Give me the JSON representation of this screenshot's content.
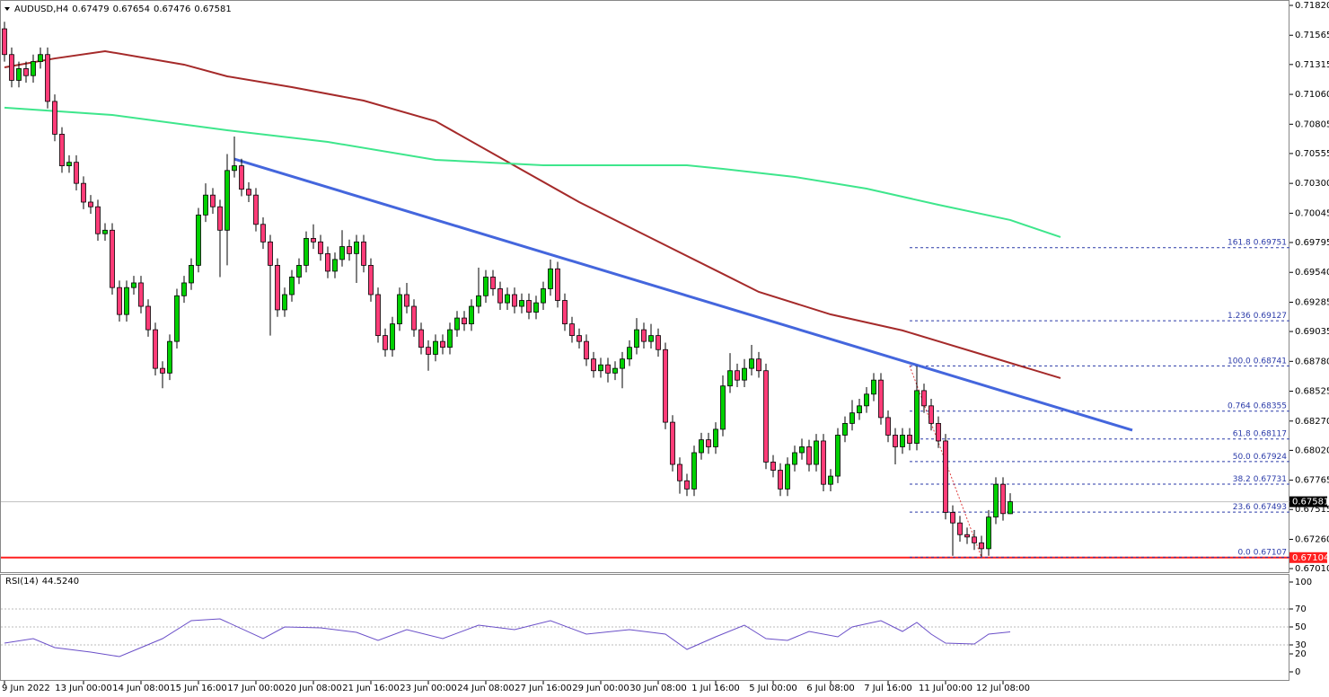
{
  "chart_data": {
    "type": "candlestick",
    "symbol": "AUDUSD,H4",
    "ylim": [
      0.66972,
      0.71866
    ],
    "yticks": [
      {
        "value": 0.7182,
        "label": "0.71820"
      },
      {
        "value": 0.71565,
        "label": "0.71565"
      },
      {
        "value": 0.71315,
        "label": "0.71315"
      },
      {
        "value": 0.7106,
        "label": "0.71060"
      },
      {
        "value": 0.70805,
        "label": "0.70805"
      },
      {
        "value": 0.70555,
        "label": "0.70555"
      },
      {
        "value": 0.703,
        "label": "0.70300"
      },
      {
        "value": 0.70045,
        "label": "0.70045"
      },
      {
        "value": 0.69795,
        "label": "0.69795"
      },
      {
        "value": 0.6954,
        "label": "0.69540"
      },
      {
        "value": 0.69285,
        "label": "0.69285"
      },
      {
        "value": 0.69035,
        "label": "0.69035"
      },
      {
        "value": 0.6878,
        "label": "0.68780"
      },
      {
        "value": 0.68525,
        "label": "0.68525"
      },
      {
        "value": 0.6827,
        "label": "0.68270"
      },
      {
        "value": 0.6802,
        "label": "0.68020"
      },
      {
        "value": 0.67765,
        "label": "0.67765"
      },
      {
        "value": 0.67515,
        "label": "0.67515"
      },
      {
        "value": 0.6726,
        "label": "0.67260"
      },
      {
        "value": 0.6701,
        "label": "0.67010"
      }
    ],
    "xticks": [
      {
        "value": 0,
        "label": "9 Jun 2022"
      },
      {
        "value": 11,
        "label": "13 Jun 00:00"
      },
      {
        "value": 19,
        "label": "14 Jun 08:00"
      },
      {
        "value": 27,
        "label": "15 Jun 16:00"
      },
      {
        "value": 35,
        "label": "17 Jun 00:00"
      },
      {
        "value": 43,
        "label": "20 Jun 08:00"
      },
      {
        "value": 51,
        "label": "21 Jun 16:00"
      },
      {
        "value": 59,
        "label": "23 Jun 00:00"
      },
      {
        "value": 67,
        "label": "24 Jun 08:00"
      },
      {
        "value": 75,
        "label": "27 Jun 16:00"
      },
      {
        "value": 83,
        "label": "29 Jun 00:00"
      },
      {
        "value": 91,
        "label": "30 Jun 08:00"
      },
      {
        "value": 99,
        "label": "1 Jul 16:00"
      },
      {
        "value": 107,
        "label": "5 Jul 00:00"
      },
      {
        "value": 115,
        "label": "6 Jul 08:00"
      },
      {
        "value": 123,
        "label": "7 Jul 16:00"
      },
      {
        "value": 131,
        "label": "11 Jul 00:00"
      },
      {
        "value": 139,
        "label": "12 Jul 08:00"
      }
    ],
    "up_color": "#00d000",
    "down_color": "#ff3c78",
    "candles": [
      [
        0.7162,
        0.7168,
        0.7134,
        0.714
      ],
      [
        0.714,
        0.7146,
        0.7112,
        0.7118
      ],
      [
        0.7118,
        0.7134,
        0.7112,
        0.7128
      ],
      [
        0.7128,
        0.7134,
        0.7116,
        0.7122
      ],
      [
        0.7122,
        0.714,
        0.7116,
        0.7134
      ],
      [
        0.7134,
        0.7146,
        0.7128,
        0.714
      ],
      [
        0.714,
        0.7146,
        0.7094,
        0.71
      ],
      [
        0.71,
        0.7106,
        0.7066,
        0.7072
      ],
      [
        0.7072,
        0.7078,
        0.7039,
        0.7045
      ],
      [
        0.7045,
        0.7054,
        0.7039,
        0.7048
      ],
      [
        0.7048,
        0.7054,
        0.7024,
        0.703
      ],
      [
        0.703,
        0.7036,
        0.7008,
        0.7014
      ],
      [
        0.7014,
        0.702,
        0.7004,
        0.701
      ],
      [
        0.701,
        0.7016,
        0.6981,
        0.6987
      ],
      [
        0.6987,
        0.6996,
        0.6981,
        0.699
      ],
      [
        0.699,
        0.6996,
        0.6935,
        0.6941
      ],
      [
        0.6941,
        0.6947,
        0.6912,
        0.6918
      ],
      [
        0.6918,
        0.6947,
        0.6912,
        0.6941
      ],
      [
        0.6941,
        0.6951,
        0.6935,
        0.6945
      ],
      [
        0.6945,
        0.6951,
        0.6919,
        0.6925
      ],
      [
        0.6925,
        0.6931,
        0.6899,
        0.6905
      ],
      [
        0.6905,
        0.6911,
        0.6866,
        0.6872
      ],
      [
        0.6872,
        0.6878,
        0.6855,
        0.6868
      ],
      [
        0.6868,
        0.6901,
        0.6862,
        0.6895
      ],
      [
        0.6895,
        0.694,
        0.6889,
        0.6934
      ],
      [
        0.6934,
        0.6951,
        0.6928,
        0.6945
      ],
      [
        0.6945,
        0.6966,
        0.6939,
        0.696
      ],
      [
        0.696,
        0.7009,
        0.6954,
        0.7003
      ],
      [
        0.7003,
        0.703,
        0.6997,
        0.702
      ],
      [
        0.702,
        0.7026,
        0.7004,
        0.701
      ],
      [
        0.701,
        0.7016,
        0.695,
        0.699
      ],
      [
        0.699,
        0.7055,
        0.696,
        0.7041
      ],
      [
        0.7041,
        0.707,
        0.7035,
        0.7045
      ],
      [
        0.7045,
        0.7051,
        0.7019,
        0.7025
      ],
      [
        0.7025,
        0.7031,
        0.7014,
        0.702
      ],
      [
        0.702,
        0.7026,
        0.6989,
        0.6995
      ],
      [
        0.6995,
        0.7001,
        0.6974,
        0.698
      ],
      [
        0.698,
        0.6986,
        0.69,
        0.696
      ],
      [
        0.696,
        0.6966,
        0.6916,
        0.6922
      ],
      [
        0.6922,
        0.6941,
        0.6916,
        0.6935
      ],
      [
        0.6935,
        0.6956,
        0.6929,
        0.695
      ],
      [
        0.695,
        0.6966,
        0.6944,
        0.696
      ],
      [
        0.696,
        0.6989,
        0.6954,
        0.6983
      ],
      [
        0.6983,
        0.6995,
        0.6974,
        0.698
      ],
      [
        0.698,
        0.6986,
        0.6964,
        0.697
      ],
      [
        0.697,
        0.6976,
        0.6949,
        0.6955
      ],
      [
        0.6955,
        0.6971,
        0.6949,
        0.6965
      ],
      [
        0.6965,
        0.699,
        0.6959,
        0.6976
      ],
      [
        0.6976,
        0.6982,
        0.6964,
        0.697
      ],
      [
        0.697,
        0.6986,
        0.6945,
        0.698
      ],
      [
        0.698,
        0.6986,
        0.6954,
        0.696
      ],
      [
        0.696,
        0.6966,
        0.6929,
        0.6935
      ],
      [
        0.6935,
        0.6941,
        0.6894,
        0.69
      ],
      [
        0.69,
        0.6906,
        0.6882,
        0.6888
      ],
      [
        0.6888,
        0.6916,
        0.6882,
        0.691
      ],
      [
        0.691,
        0.6941,
        0.6904,
        0.6935
      ],
      [
        0.6935,
        0.6945,
        0.6919,
        0.6925
      ],
      [
        0.6925,
        0.6931,
        0.6899,
        0.6905
      ],
      [
        0.6905,
        0.6911,
        0.6884,
        0.689
      ],
      [
        0.689,
        0.6896,
        0.687,
        0.6884
      ],
      [
        0.6884,
        0.6901,
        0.6878,
        0.6895
      ],
      [
        0.6895,
        0.6901,
        0.6884,
        0.689
      ],
      [
        0.689,
        0.6911,
        0.6884,
        0.6905
      ],
      [
        0.6905,
        0.6921,
        0.6899,
        0.6915
      ],
      [
        0.6915,
        0.6921,
        0.6904,
        0.691
      ],
      [
        0.691,
        0.6931,
        0.6904,
        0.6925
      ],
      [
        0.6925,
        0.6958,
        0.6919,
        0.6934
      ],
      [
        0.6934,
        0.6956,
        0.6928,
        0.695
      ],
      [
        0.695,
        0.6956,
        0.6934,
        0.694
      ],
      [
        0.694,
        0.6946,
        0.6922,
        0.6928
      ],
      [
        0.6928,
        0.6941,
        0.6922,
        0.6935
      ],
      [
        0.6935,
        0.6941,
        0.6919,
        0.6925
      ],
      [
        0.6925,
        0.6936,
        0.6919,
        0.693
      ],
      [
        0.693,
        0.6936,
        0.6914,
        0.692
      ],
      [
        0.692,
        0.6934,
        0.6914,
        0.6928
      ],
      [
        0.6928,
        0.6946,
        0.6922,
        0.694
      ],
      [
        0.694,
        0.6965,
        0.6934,
        0.6957
      ],
      [
        0.6957,
        0.6963,
        0.6924,
        0.693
      ],
      [
        0.693,
        0.6936,
        0.6904,
        0.691
      ],
      [
        0.691,
        0.6916,
        0.6894,
        0.69
      ],
      [
        0.69,
        0.6906,
        0.6889,
        0.6895
      ],
      [
        0.6895,
        0.6901,
        0.6874,
        0.688
      ],
      [
        0.688,
        0.6886,
        0.6864,
        0.687
      ],
      [
        0.687,
        0.6881,
        0.6864,
        0.6875
      ],
      [
        0.6875,
        0.6881,
        0.686,
        0.6868
      ],
      [
        0.6868,
        0.6878,
        0.6862,
        0.6872
      ],
      [
        0.6872,
        0.6886,
        0.6855,
        0.688
      ],
      [
        0.688,
        0.6896,
        0.6874,
        0.689
      ],
      [
        0.689,
        0.6915,
        0.6884,
        0.6905
      ],
      [
        0.6905,
        0.6911,
        0.6889,
        0.6895
      ],
      [
        0.6895,
        0.691,
        0.6889,
        0.69
      ],
      [
        0.69,
        0.6906,
        0.6882,
        0.6888
      ],
      [
        0.6888,
        0.6894,
        0.682,
        0.6826
      ],
      [
        0.6826,
        0.6832,
        0.6784,
        0.679
      ],
      [
        0.679,
        0.6796,
        0.6765,
        0.6776
      ],
      [
        0.6776,
        0.6782,
        0.6763,
        0.6769
      ],
      [
        0.6769,
        0.6806,
        0.6763,
        0.68
      ],
      [
        0.68,
        0.6817,
        0.6794,
        0.6811
      ],
      [
        0.6811,
        0.6817,
        0.6799,
        0.6805
      ],
      [
        0.6805,
        0.6826,
        0.6799,
        0.682
      ],
      [
        0.682,
        0.6866,
        0.6814,
        0.6857
      ],
      [
        0.6857,
        0.6885,
        0.6851,
        0.687
      ],
      [
        0.687,
        0.6876,
        0.6856,
        0.6862
      ],
      [
        0.6862,
        0.688,
        0.6856,
        0.6872
      ],
      [
        0.6872,
        0.6892,
        0.6866,
        0.688
      ],
      [
        0.688,
        0.6886,
        0.6864,
        0.687
      ],
      [
        0.687,
        0.6876,
        0.6786,
        0.6792
      ],
      [
        0.6792,
        0.6798,
        0.6779,
        0.6785
      ],
      [
        0.6785,
        0.6791,
        0.6763,
        0.6769
      ],
      [
        0.6769,
        0.6796,
        0.6763,
        0.679
      ],
      [
        0.679,
        0.6806,
        0.6784,
        0.68
      ],
      [
        0.68,
        0.6812,
        0.6794,
        0.6805
      ],
      [
        0.6805,
        0.6811,
        0.6784,
        0.679
      ],
      [
        0.679,
        0.6816,
        0.6784,
        0.681
      ],
      [
        0.681,
        0.6816,
        0.6767,
        0.6773
      ],
      [
        0.6773,
        0.6786,
        0.6767,
        0.678
      ],
      [
        0.678,
        0.6821,
        0.6774,
        0.6815
      ],
      [
        0.6815,
        0.6831,
        0.6809,
        0.6825
      ],
      [
        0.6825,
        0.6845,
        0.6819,
        0.6834
      ],
      [
        0.6834,
        0.6846,
        0.6828,
        0.684
      ],
      [
        0.684,
        0.6856,
        0.6834,
        0.685
      ],
      [
        0.685,
        0.6868,
        0.6844,
        0.6862
      ],
      [
        0.6862,
        0.6868,
        0.6824,
        0.683
      ],
      [
        0.683,
        0.6836,
        0.6809,
        0.6815
      ],
      [
        0.6815,
        0.6821,
        0.679,
        0.6805
      ],
      [
        0.6805,
        0.6821,
        0.6799,
        0.6815
      ],
      [
        0.6815,
        0.6821,
        0.6802,
        0.6808
      ],
      [
        0.6808,
        0.6874,
        0.6802,
        0.6853
      ],
      [
        0.6853,
        0.6859,
        0.6834,
        0.684
      ],
      [
        0.684,
        0.6846,
        0.6819,
        0.6825
      ],
      [
        0.6825,
        0.6831,
        0.6804,
        0.681
      ],
      [
        0.681,
        0.6816,
        0.6743,
        0.6749
      ],
      [
        0.6749,
        0.6755,
        0.6712,
        0.674
      ],
      [
        0.674,
        0.6746,
        0.6724,
        0.673
      ],
      [
        0.673,
        0.6736,
        0.6722,
        0.6728
      ],
      [
        0.6728,
        0.6734,
        0.6717,
        0.6723
      ],
      [
        0.6723,
        0.6729,
        0.6711,
        0.6718
      ],
      [
        0.6718,
        0.6751,
        0.6712,
        0.6745
      ],
      [
        0.6745,
        0.6779,
        0.6739,
        0.6773
      ],
      [
        0.6773,
        0.6779,
        0.6742,
        0.6748
      ],
      [
        0.67479,
        0.67654,
        0.67476,
        0.67581
      ]
    ],
    "moving_averages": [
      {
        "color": "#a52a2a",
        "x": [
          0,
          7,
          14,
          25,
          31,
          40,
          50,
          60,
          70,
          80,
          90,
          100,
          105,
          115,
          125,
          135,
          147
        ],
        "values": [
          0.71291,
          0.71367,
          0.71429,
          0.71314,
          0.71214,
          0.71122,
          0.71007,
          0.70831,
          0.70485,
          0.7014,
          0.69833,
          0.69527,
          0.69373,
          0.69181,
          0.69044,
          0.68859,
          0.68637
        ]
      },
      {
        "color": "#3ee68c",
        "x": [
          0,
          15,
          31,
          45,
          60,
          75,
          95,
          100,
          110,
          120,
          130,
          140,
          147
        ],
        "values": [
          0.70946,
          0.70884,
          0.70754,
          0.70654,
          0.70501,
          0.70455,
          0.70455,
          0.70424,
          0.70355,
          0.70255,
          0.70117,
          0.69987,
          0.69841
        ]
      }
    ],
    "trendline": {
      "color": "#4466dd",
      "x": [
        32,
        157
      ],
      "values": [
        0.70508,
        0.68192
      ]
    },
    "fib": {
      "color": "#2a3aa8",
      "start": 126,
      "swing_color": "#e04040",
      "swing_x": [
        126,
        136
      ],
      "swing_values": [
        0.68741,
        0.67107
      ],
      "levels": [
        {
          "name": "161.8",
          "value": 0.69751
        },
        {
          "name": "1.236",
          "value": 0.69127
        },
        {
          "name": "100.0",
          "value": 0.68741
        },
        {
          "name": "0.764",
          "value": 0.68355
        },
        {
          "name": "61.8",
          "value": 0.68117
        },
        {
          "name": "50.0",
          "value": 0.67924
        },
        {
          "name": "38.2",
          "value": 0.67731
        },
        {
          "name": "23.6",
          "value": 0.67493
        },
        {
          "name": "0.0",
          "value": 0.67107
        }
      ]
    },
    "support": {
      "value": 0.67104,
      "color": "#ff2020"
    },
    "current_price": 0.67581,
    "rsi": {
      "title": "RSI(14)",
      "current_label": "44.5240",
      "color": "#6a4fc8",
      "ylim": [
        -10,
        109
      ],
      "yticks": [
        100,
        70,
        50,
        30,
        20,
        0
      ],
      "x": [
        0,
        4,
        7,
        12,
        16,
        19,
        22,
        26,
        30,
        36,
        39,
        44,
        49,
        52,
        56,
        61,
        66,
        71,
        76,
        81,
        87,
        92,
        95,
        99,
        103,
        106,
        109,
        112,
        116,
        118,
        122,
        125,
        127,
        129,
        131,
        135,
        137,
        140
      ],
      "values": [
        32,
        37,
        27,
        22,
        17,
        27,
        37,
        57,
        59,
        37,
        50,
        49,
        44,
        35,
        47,
        37,
        52,
        47,
        57,
        42,
        47,
        42,
        25,
        39,
        52,
        37,
        35,
        45,
        39,
        50,
        57,
        45,
        55,
        42,
        32,
        31,
        42,
        44.524
      ]
    }
  }
}
